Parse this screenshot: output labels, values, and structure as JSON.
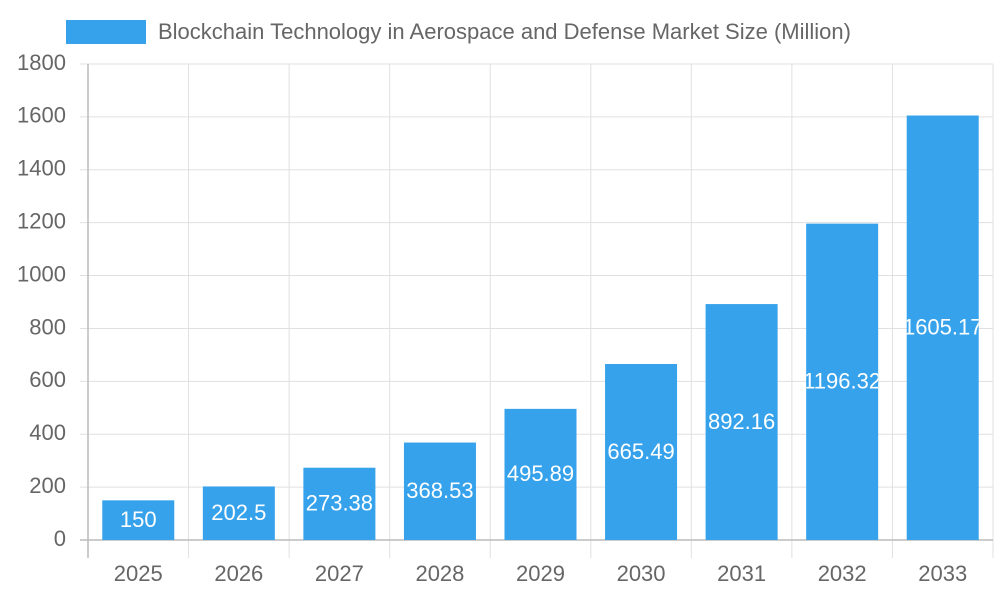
{
  "chart_data": {
    "type": "bar",
    "categories": [
      "2025",
      "2026",
      "2027",
      "2028",
      "2029",
      "2030",
      "2031",
      "2032",
      "2033"
    ],
    "series": [
      {
        "name": "Blockchain Technology in Aerospace and Defense Market Size (Million)",
        "color": "#36a2eb",
        "values": [
          150,
          202.5,
          273.38,
          368.53,
          495.89,
          665.49,
          892.16,
          1196.32,
          1605.17
        ]
      }
    ],
    "ylim": [
      0,
      1800
    ],
    "yticks": [
      0,
      200,
      400,
      600,
      800,
      1000,
      1200,
      1400,
      1600,
      1800
    ],
    "grid": true,
    "legend": "top"
  }
}
